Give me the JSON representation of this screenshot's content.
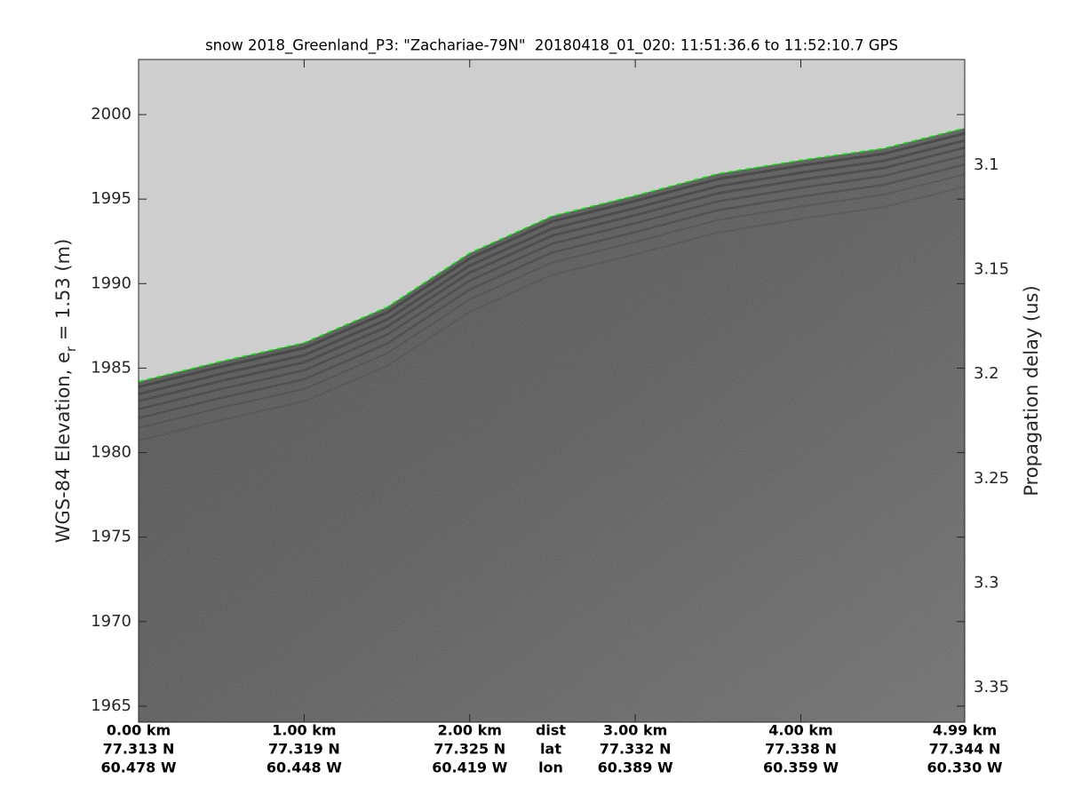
{
  "chart_data": {
    "type": "line",
    "title": "snow 2018_Greenland_P3: \"Zachariae-79N\"  20180418_01_020: 11:51:36.6 to 11:52:10.7 GPS",
    "y_label": {
      "text": "WGS-84 Elevation, e",
      "subscript": "r",
      "rest": " = 1.53 (m)"
    },
    "y2_label": "Propagation delay (us)",
    "x_row_labels": [
      "dist",
      "lat",
      "lon"
    ],
    "x": [
      0,
      0.5,
      1.0,
      1.5,
      2.0,
      2.5,
      3.0,
      3.5,
      4.0,
      4.5,
      4.99
    ],
    "series": [
      {
        "color": "#00ee00",
        "values": [
          1984.2,
          1985.4,
          1986.5,
          1988.6,
          1991.8,
          1994.0,
          1995.2,
          1996.5,
          1997.3,
          1998.0,
          1999.2
        ]
      }
    ],
    "xlim": [
      0,
      4.99
    ],
    "xticks": [
      {
        "value": 0,
        "label": "0.00 km"
      },
      {
        "value": 1,
        "label": "1.00 km"
      },
      {
        "value": 2,
        "label": "2.00 km"
      },
      {
        "value": 3,
        "label": "3.00 km"
      },
      {
        "value": 4,
        "label": "4.00 km"
      },
      {
        "value": 4.99,
        "label": "4.99 km"
      }
    ],
    "lat_labels": [
      "77.313 N",
      "77.319 N",
      "77.325 N",
      "77.332 N",
      "77.338 N",
      "77.344 N"
    ],
    "lon_labels": [
      "60.478 W",
      "60.448 W",
      "60.419 W",
      "60.389 W",
      "60.359 W",
      "60.330 W"
    ],
    "ylim": [
      1964.05,
      2003.26
    ],
    "yticks": [
      1965,
      1970,
      1975,
      1980,
      1985,
      1990,
      1995,
      2000
    ],
    "y2lim": [
      3.3666,
      3.0494
    ],
    "y2ticks": [
      3.1,
      3.15,
      3.2,
      3.25,
      3.3,
      3.35
    ]
  }
}
